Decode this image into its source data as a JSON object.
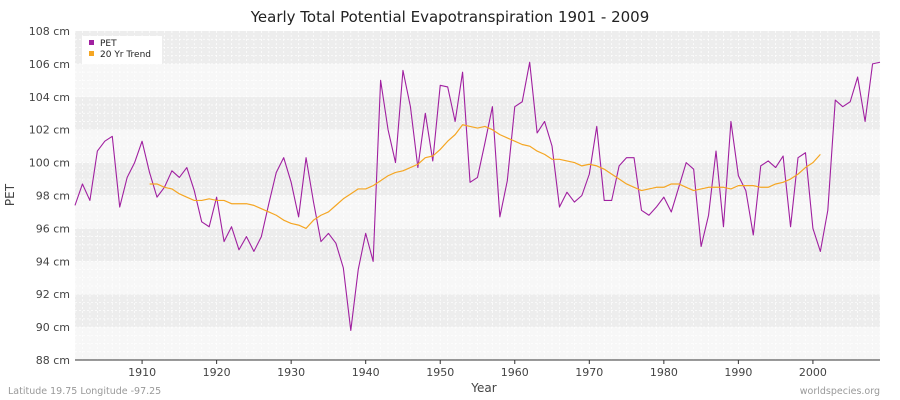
{
  "chart_data": {
    "type": "line",
    "title": "Yearly Total Potential Evapotranspiration 1901 - 2009",
    "xlabel": "Year",
    "ylabel": "PET",
    "xlim": [
      1901,
      2009
    ],
    "ylim": [
      88,
      108
    ],
    "y_unit": "cm",
    "x_ticks": [
      1910,
      1920,
      1930,
      1940,
      1950,
      1960,
      1970,
      1980,
      1990,
      2000
    ],
    "y_ticks": [
      88,
      90,
      92,
      94,
      96,
      98,
      100,
      102,
      104,
      106,
      108
    ],
    "y_tick_labels": [
      "88 cm",
      "90 cm",
      "92 cm",
      "94 cm",
      "96 cm",
      "98 cm",
      "100 cm",
      "102 cm",
      "104 cm",
      "106 cm",
      "108 cm"
    ],
    "grid": true,
    "legend_position": "top-left",
    "series": [
      {
        "name": "PET",
        "color": "#a020a0",
        "x_start": 1901,
        "values": [
          97.4,
          98.7,
          97.7,
          100.7,
          101.3,
          101.6,
          97.3,
          99.1,
          100.0,
          101.3,
          99.4,
          97.9,
          98.5,
          99.5,
          99.1,
          99.7,
          98.3,
          96.4,
          96.1,
          97.9,
          95.2,
          96.1,
          94.7,
          95.5,
          94.6,
          95.5,
          97.5,
          99.4,
          100.3,
          98.8,
          96.7,
          100.3,
          97.6,
          95.2,
          95.7,
          95.1,
          93.6,
          89.8,
          93.5,
          95.7,
          94.0,
          105.0,
          102.0,
          100.0,
          105.6,
          103.4,
          99.7,
          103.0,
          100.1,
          104.7,
          104.6,
          102.5,
          105.5,
          98.8,
          99.1,
          101.2,
          103.4,
          96.7,
          98.9,
          103.4,
          103.7,
          106.1,
          101.8,
          102.5,
          101.0,
          97.3,
          98.2,
          97.6,
          98.0,
          99.3,
          102.2,
          97.7,
          97.7,
          99.8,
          100.3,
          100.3,
          97.1,
          96.8,
          97.3,
          97.9,
          97.0,
          98.5,
          100.0,
          99.6,
          94.9,
          96.8,
          100.7,
          96.1,
          102.5,
          99.2,
          98.3,
          95.6,
          99.8,
          100.1,
          99.7,
          100.4,
          96.1,
          100.3,
          100.6,
          96.0,
          94.6,
          97.1,
          103.8,
          103.4,
          103.7,
          105.2,
          102.5,
          106.0,
          106.1
        ]
      },
      {
        "name": "20 Yr Trend",
        "color": "#f5a623",
        "x_start": 1911,
        "values": [
          98.7,
          98.7,
          98.5,
          98.4,
          98.1,
          97.9,
          97.7,
          97.7,
          97.8,
          97.7,
          97.7,
          97.5,
          97.5,
          97.5,
          97.4,
          97.2,
          97.0,
          96.8,
          96.5,
          96.3,
          96.2,
          96.0,
          96.5,
          96.8,
          97.0,
          97.4,
          97.8,
          98.1,
          98.4,
          98.4,
          98.6,
          98.9,
          99.2,
          99.4,
          99.5,
          99.7,
          99.9,
          100.3,
          100.4,
          100.8,
          101.3,
          101.7,
          102.3,
          102.2,
          102.1,
          102.2,
          102.0,
          101.7,
          101.5,
          101.3,
          101.1,
          101.0,
          100.7,
          100.5,
          100.2,
          100.2,
          100.1,
          100.0,
          99.8,
          99.9,
          99.8,
          99.6,
          99.3,
          99.0,
          98.7,
          98.5,
          98.3,
          98.4,
          98.5,
          98.5,
          98.7,
          98.7,
          98.5,
          98.3,
          98.4,
          98.5,
          98.5,
          98.5,
          98.4,
          98.6,
          98.6,
          98.6,
          98.5,
          98.5,
          98.7,
          98.8,
          99.0,
          99.3,
          99.7,
          100.0,
          100.5
        ]
      }
    ]
  },
  "footer": {
    "left": "Latitude 19.75 Longitude -97.25",
    "right": "worldspecies.org"
  }
}
